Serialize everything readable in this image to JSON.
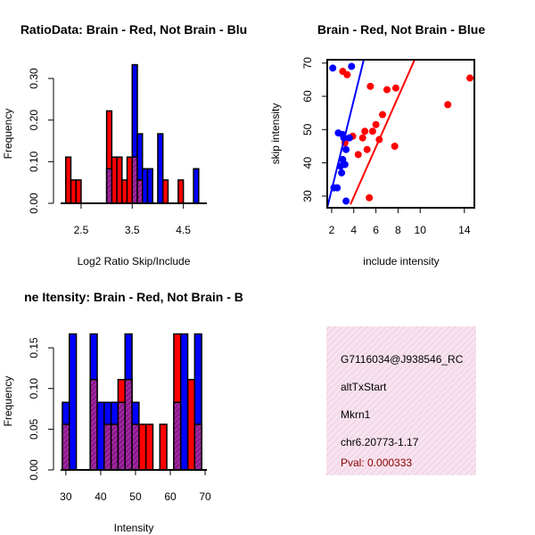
{
  "colors": {
    "red": "#ff0000",
    "blue": "#0000ff",
    "overlap": "#8b1a8b",
    "info_bg": "#f3d6e8",
    "pval": "#8b0000"
  },
  "chart_data": [
    {
      "type": "bar",
      "title": "RatioData: Brain - Red, Not Brain - Blu",
      "xlabel": "Log2 Ratio Skip/Include",
      "ylabel": "Frequency",
      "xlim": [
        2.1,
        4.96
      ],
      "ylim": [
        0,
        0.36
      ],
      "xticks": [
        "2.5",
        "3.5",
        "4.5"
      ],
      "yticks": [
        "0.00",
        "0.10",
        "0.20",
        "0.30"
      ],
      "bin_width": 0.1,
      "series": [
        {
          "name": "Brain",
          "color": "red",
          "bins": [
            [
              2.2,
              0.111
            ],
            [
              2.3,
              0.056
            ],
            [
              2.4,
              0.056
            ],
            [
              3.0,
              0.222
            ],
            [
              3.1,
              0.111
            ],
            [
              3.2,
              0.111
            ],
            [
              3.3,
              0.056
            ],
            [
              3.4,
              0.111
            ],
            [
              3.5,
              0.111
            ],
            [
              3.6,
              0.056
            ],
            [
              4.1,
              0.056
            ],
            [
              4.4,
              0.056
            ]
          ]
        },
        {
          "name": "Not Brain",
          "color": "blue",
          "bins": [
            [
              3.0,
              0.083
            ],
            [
              3.5,
              0.333
            ],
            [
              3.6,
              0.167
            ],
            [
              3.7,
              0.083
            ],
            [
              3.8,
              0.083
            ],
            [
              4.0,
              0.167
            ],
            [
              4.7,
              0.083
            ]
          ]
        }
      ]
    },
    {
      "type": "scatter",
      "title": "Brain - Red, Not Brain - Blue",
      "xlabel": "include intensity",
      "ylabel": "skip intensity",
      "xlim": [
        1.6,
        14.9
      ],
      "ylim": [
        26.5,
        71
      ],
      "xticks": [
        2,
        4,
        6,
        8,
        10,
        14
      ],
      "yticks": [
        30,
        40,
        50,
        60,
        70
      ],
      "series": [
        {
          "name": "Brain",
          "color": "red",
          "points": [
            [
              3.0,
              67.5
            ],
            [
              3.4,
              66.5
            ],
            [
              5.5,
              63
            ],
            [
              7.0,
              62
            ],
            [
              7.8,
              62.5
            ],
            [
              6.6,
              54.5
            ],
            [
              6.0,
              51.5
            ],
            [
              5.0,
              49.5
            ],
            [
              5.7,
              49.5
            ],
            [
              3.9,
              48
            ],
            [
              4.8,
              47.5
            ],
            [
              6.3,
              47
            ],
            [
              3.2,
              46
            ],
            [
              7.7,
              45
            ],
            [
              5.2,
              44
            ],
            [
              4.4,
              42.5
            ],
            [
              5.4,
              29.5
            ],
            [
              12.5,
              57.5
            ],
            [
              14.5,
              65.5
            ]
          ],
          "fit_line": [
            [
              3.7,
              27.5
            ],
            [
              9.5,
              71
            ]
          ]
        },
        {
          "name": "Not Brain",
          "color": "blue",
          "points": [
            [
              2.1,
              68.5
            ],
            [
              3.8,
              69
            ],
            [
              2.6,
              49
            ],
            [
              3.0,
              48.5
            ],
            [
              3.1,
              47.5
            ],
            [
              3.6,
              47.5
            ],
            [
              3.3,
              44
            ],
            [
              3.0,
              41
            ],
            [
              2.8,
              39
            ],
            [
              3.2,
              39.5
            ],
            [
              2.9,
              37
            ],
            [
              2.2,
              32.5
            ],
            [
              2.5,
              32.5
            ],
            [
              3.3,
              28.5
            ]
          ],
          "fit_line": [
            [
              1.6,
              26.5
            ],
            [
              4.9,
              71
            ]
          ]
        }
      ]
    },
    {
      "type": "bar",
      "title": "ne Itensity: Brain - Red, Not Brain - B",
      "xlabel": "Intensity",
      "ylabel": "Frequency",
      "xlim": [
        28.5,
        70.5
      ],
      "ylim": [
        0,
        0.172
      ],
      "xticks": [
        "30",
        "40",
        "50",
        "60",
        "70"
      ],
      "yticks": [
        "0.00",
        "0.05",
        "0.10",
        "0.15"
      ],
      "bin_width": 2,
      "series": [
        {
          "name": "Brain",
          "color": "red",
          "bins": [
            [
              29,
              0.056
            ],
            [
              37,
              0.111
            ],
            [
              41,
              0.056
            ],
            [
              43,
              0.056
            ],
            [
              45,
              0.111
            ],
            [
              47,
              0.111
            ],
            [
              49,
              0.056
            ],
            [
              51,
              0.056
            ],
            [
              53,
              0.056
            ],
            [
              57,
              0.056
            ],
            [
              61,
              0.167
            ],
            [
              65,
              0.111
            ],
            [
              67,
              0.056
            ]
          ]
        },
        {
          "name": "Not Brain",
          "color": "blue",
          "bins": [
            [
              29,
              0.083
            ],
            [
              31,
              0.167
            ],
            [
              37,
              0.167
            ],
            [
              39,
              0.083
            ],
            [
              41,
              0.083
            ],
            [
              43,
              0.083
            ],
            [
              45,
              0.083
            ],
            [
              47,
              0.167
            ],
            [
              49,
              0.083
            ],
            [
              61,
              0.083
            ],
            [
              63,
              0.167
            ],
            [
              67,
              0.167
            ]
          ]
        }
      ]
    }
  ],
  "info": {
    "id": "G7116034@J938546_RC",
    "event": "altTxStart",
    "gene": "Mkrn1",
    "location": "chr6.20773-1.17",
    "pval": "Pval: 0.000333"
  }
}
